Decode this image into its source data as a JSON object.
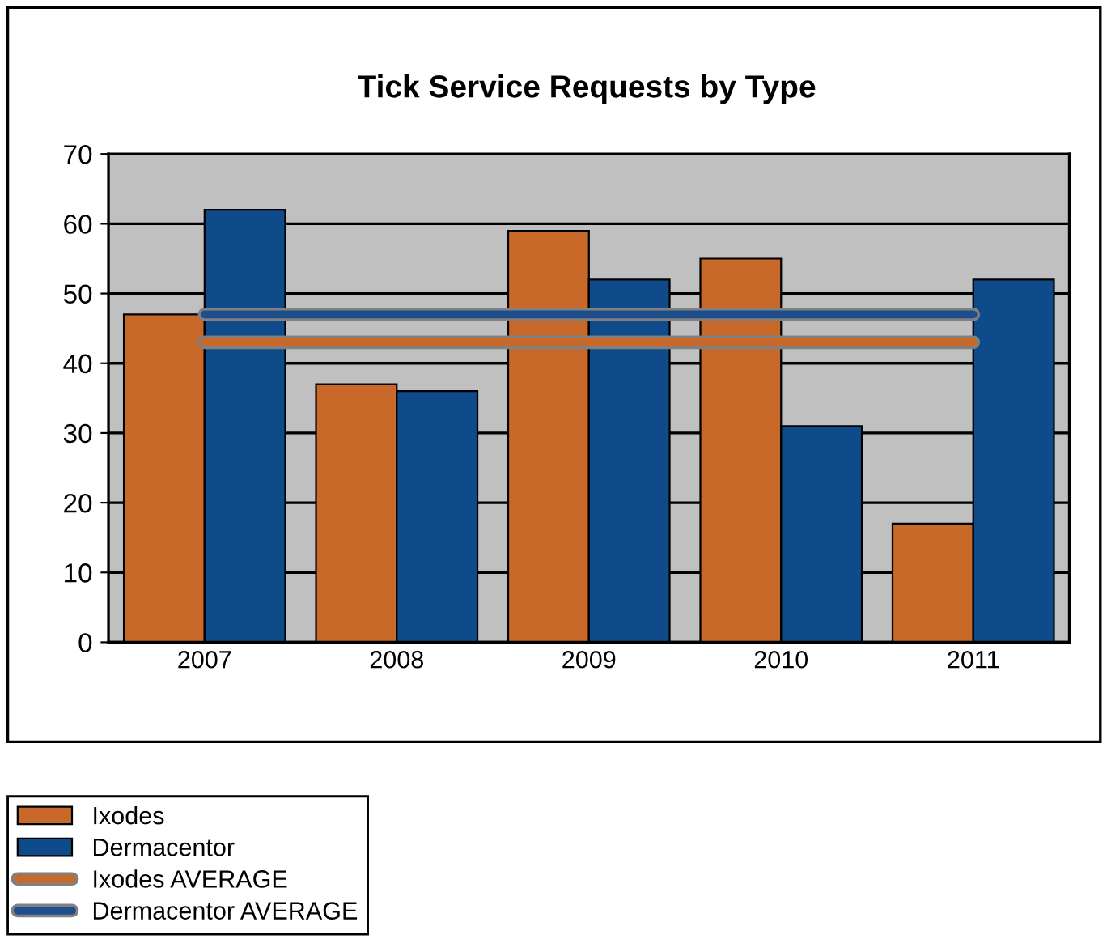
{
  "chart_data": {
    "type": "bar",
    "title": "Tick Service Requests by Type",
    "categories": [
      "2007",
      "2008",
      "2009",
      "2010",
      "2011"
    ],
    "series": [
      {
        "name": "Ixodes",
        "color": "#c8692a",
        "values": [
          47,
          37,
          59,
          55,
          17
        ]
      },
      {
        "name": "Dermacentor",
        "color": "#0f4a8a",
        "values": [
          62,
          36,
          52,
          31,
          52
        ]
      },
      {
        "name": "Ixodes AVERAGE",
        "type": "line",
        "color": "#c8692a",
        "values": [
          43,
          43,
          43,
          43,
          43
        ]
      },
      {
        "name": "Dermacentor AVERAGE",
        "type": "line",
        "color": "#1f4e8c",
        "values": [
          47,
          47,
          47,
          47,
          47
        ]
      }
    ],
    "ylim": [
      0,
      70
    ],
    "yticks": [
      0,
      10,
      20,
      30,
      40,
      50,
      60,
      70
    ],
    "grid": "y",
    "legend": "bottom left",
    "marker": "none"
  }
}
